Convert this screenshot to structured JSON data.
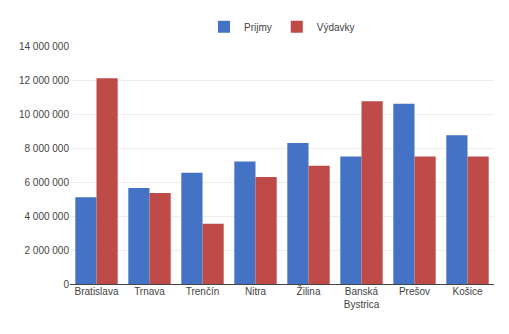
{
  "chart_data": {
    "type": "bar",
    "categories": [
      "Bratislava",
      "Trnava",
      "Trenčín",
      "Nitra",
      "Žilina",
      "Banská\nBystrica",
      "Prešov",
      "Košice"
    ],
    "series": [
      {
        "name": "Prijmy",
        "color": "#4472C4",
        "values": [
          5100000,
          5650000,
          6550000,
          7200000,
          8300000,
          7500000,
          10600000,
          8750000
        ]
      },
      {
        "name": "Výdavky",
        "color": "#BE4B48",
        "values": [
          12100000,
          5350000,
          3550000,
          6300000,
          6950000,
          10750000,
          7500000,
          7500000
        ]
      }
    ],
    "ylim": [
      0,
      14000000
    ],
    "yticks": [
      0,
      {
        "value": 2000000,
        "label": "2 000 000"
      },
      {
        "value": 4000000,
        "label": "4 000 000"
      },
      {
        "value": 6000000,
        "label": "6 000 000"
      },
      {
        "value": 8000000,
        "label": "8 000 000"
      },
      {
        "value": 10000000,
        "label": "10 000 000"
      },
      {
        "value": 12000000,
        "label": "12 000 000"
      },
      {
        "value": 14000000,
        "label": "14 000 000"
      }
    ],
    "grid": true,
    "legend": "top"
  }
}
